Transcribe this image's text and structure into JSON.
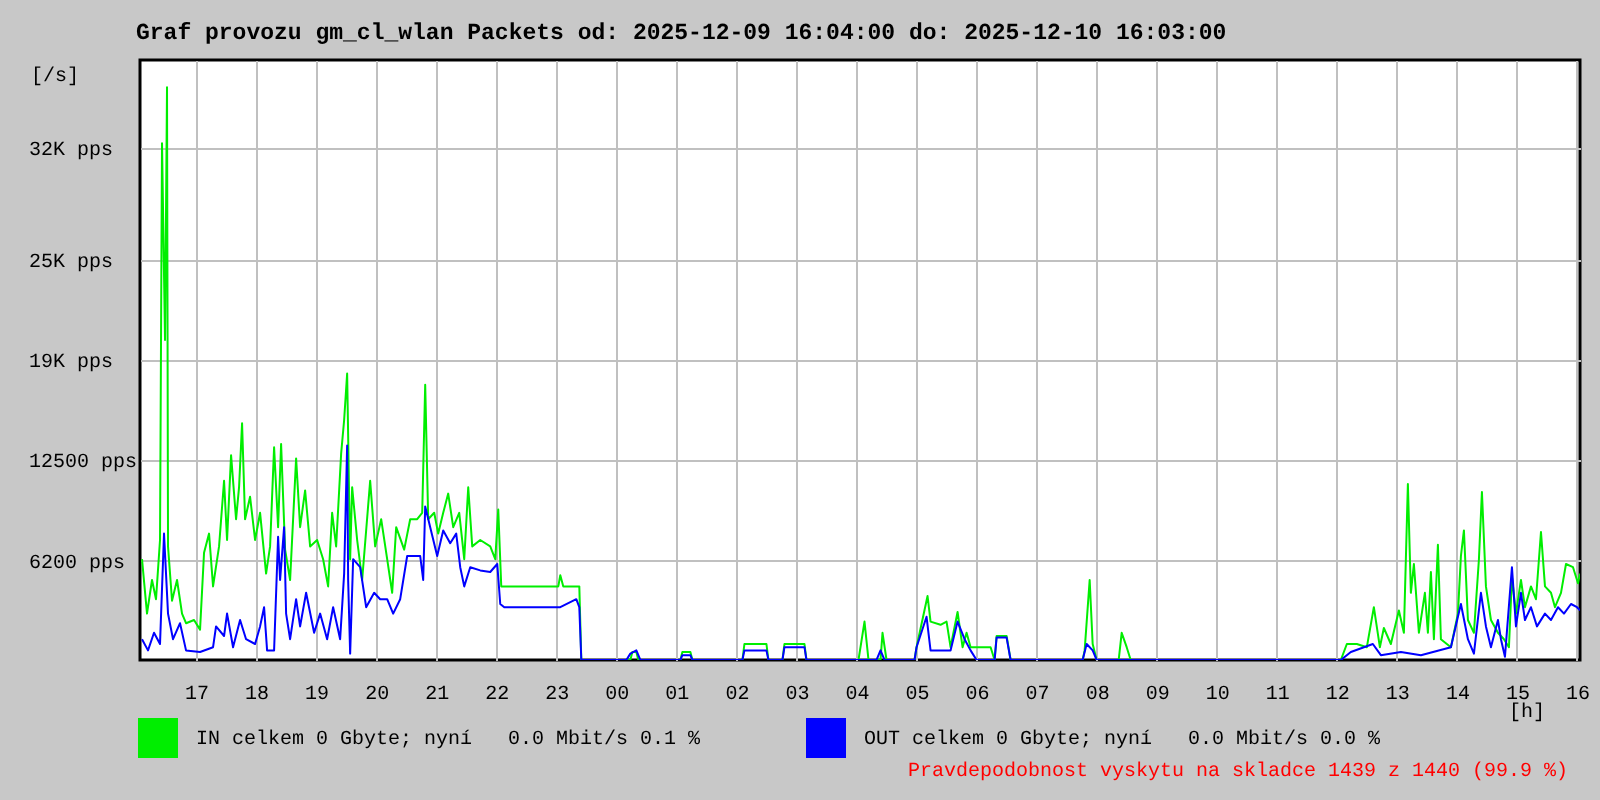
{
  "chart_data": {
    "type": "line",
    "title": "Graf provozu gm_cl_wlan Packets od: 2025-12-09 16:04:00 do: 2025-12-10 16:03:00",
    "ylabel": "[/s]",
    "xlabel": "[h]",
    "xlim": [
      "2025-12-09T16:04",
      "2025-12-10T16:03"
    ],
    "ylim": [
      0,
      37500
    ],
    "xticks": [
      {
        "value": "2025-12-09T17:00",
        "label": "17"
      },
      {
        "value": "2025-12-09T18:00",
        "label": "18"
      },
      {
        "value": "2025-12-09T19:00",
        "label": "19"
      },
      {
        "value": "2025-12-09T20:00",
        "label": "20"
      },
      {
        "value": "2025-12-09T21:00",
        "label": "21"
      },
      {
        "value": "2025-12-09T22:00",
        "label": "22"
      },
      {
        "value": "2025-12-09T23:00",
        "label": "23"
      },
      {
        "value": "2025-12-10T00:00",
        "label": "00"
      },
      {
        "value": "2025-12-10T01:00",
        "label": "01"
      },
      {
        "value": "2025-12-10T02:00",
        "label": "02"
      },
      {
        "value": "2025-12-10T03:00",
        "label": "03"
      },
      {
        "value": "2025-12-10T04:00",
        "label": "04"
      },
      {
        "value": "2025-12-10T05:00",
        "label": "05"
      },
      {
        "value": "2025-12-10T06:00",
        "label": "06"
      },
      {
        "value": "2025-12-10T07:00",
        "label": "07"
      },
      {
        "value": "2025-12-10T08:00",
        "label": "08"
      },
      {
        "value": "2025-12-10T09:00",
        "label": "09"
      },
      {
        "value": "2025-12-10T10:00",
        "label": "10"
      },
      {
        "value": "2025-12-10T11:00",
        "label": "11"
      },
      {
        "value": "2025-12-10T12:00",
        "label": "12"
      },
      {
        "value": "2025-12-10T13:00",
        "label": "13"
      },
      {
        "value": "2025-12-10T14:00",
        "label": "14"
      },
      {
        "value": "2025-12-10T15:00",
        "label": "15"
      },
      {
        "value": "2025-12-10T16:00",
        "label": "16"
      }
    ],
    "yticks": [
      {
        "value": 6200,
        "label": "6200 pps"
      },
      {
        "value": 12500,
        "label": "12500 pps"
      },
      {
        "value": 18750,
        "label": "19K pps"
      },
      {
        "value": 25000,
        "label": "25K pps"
      },
      {
        "value": 32000,
        "label": "32K pps"
      }
    ],
    "grid": true,
    "legend": "bottom left",
    "line_style": "solid",
    "annotations": [
      "Pravdepodobnost vyskytu na skladce 1439 z 1440 (99.9 %)"
    ],
    "series": [
      {
        "name": "IN celkem 0 Gbyte; nyní   0.0 Mbit/s 0.1 %",
        "color": "#00ee00",
        "x": [
          "2025-12-09T16:06",
          "2025-12-09T16:11",
          "2025-12-09T16:16",
          "2025-12-09T16:20",
          "2025-12-09T16:24",
          "2025-12-09T16:26",
          "2025-12-09T16:29",
          "2025-12-09T16:31",
          "2025-12-09T16:32",
          "2025-12-09T16:36",
          "2025-12-09T16:41",
          "2025-12-09T16:46",
          "2025-12-09T16:50",
          "2025-12-09T16:58",
          "2025-12-09T17:04",
          "2025-12-09T17:08",
          "2025-12-09T17:13",
          "2025-12-09T17:17",
          "2025-12-09T17:23",
          "2025-12-09T17:28",
          "2025-12-09T17:31",
          "2025-12-09T17:35",
          "2025-12-09T17:40",
          "2025-12-09T17:43",
          "2025-12-09T17:46",
          "2025-12-09T17:49",
          "2025-12-09T17:54",
          "2025-12-09T17:59",
          "2025-12-09T18:04",
          "2025-12-09T18:10",
          "2025-12-09T18:14",
          "2025-12-09T18:18",
          "2025-12-09T18:22",
          "2025-12-09T18:25",
          "2025-12-09T18:29",
          "2025-12-09T18:34",
          "2025-12-09T18:40",
          "2025-12-09T18:44",
          "2025-12-09T18:49",
          "2025-12-09T18:54",
          "2025-12-09T19:01",
          "2025-12-09T19:07",
          "2025-12-09T19:12",
          "2025-12-09T19:16",
          "2025-12-09T19:20",
          "2025-12-09T19:25",
          "2025-12-09T19:28",
          "2025-12-09T19:31",
          "2025-12-09T19:34",
          "2025-12-09T19:36",
          "2025-12-09T19:41",
          "2025-12-09T19:46",
          "2025-12-09T19:54",
          "2025-12-09T19:59",
          "2025-12-09T20:05",
          "2025-12-09T20:11",
          "2025-12-09T20:16",
          "2025-12-09T20:20",
          "2025-12-09T20:28",
          "2025-12-09T20:34",
          "2025-12-09T20:41",
          "2025-12-09T20:46",
          "2025-12-09T20:49",
          "2025-12-09T20:52",
          "2025-12-09T20:58",
          "2025-12-09T21:02",
          "2025-12-09T21:07",
          "2025-12-09T21:12",
          "2025-12-09T21:17",
          "2025-12-09T21:23",
          "2025-12-09T21:28",
          "2025-12-09T21:32",
          "2025-12-09T21:36",
          "2025-12-09T21:44",
          "2025-12-09T21:54",
          "2025-12-09T21:59",
          "2025-12-09T22:02",
          "2025-12-09T22:05",
          "2025-12-09T23:02",
          "2025-12-09T23:04",
          "2025-12-09T23:07",
          "2025-12-09T23:23",
          "2025-12-09T23:25",
          "2025-12-10T00:14",
          "2025-12-10T00:16",
          "2025-12-10T00:20",
          "2025-12-10T00:22",
          "2025-12-10T01:04",
          "2025-12-10T01:06",
          "2025-12-10T01:14",
          "2025-12-10T01:16",
          "2025-12-10T02:06",
          "2025-12-10T02:08",
          "2025-12-10T02:30",
          "2025-12-10T02:32",
          "2025-12-10T02:46",
          "2025-12-10T02:48",
          "2025-12-10T03:08",
          "2025-12-10T03:10",
          "2025-12-10T04:02",
          "2025-12-10T04:08",
          "2025-12-10T04:12",
          "2025-12-10T04:24",
          "2025-12-10T04:26",
          "2025-12-10T04:30",
          "2025-12-10T04:58",
          "2025-12-10T05:00",
          "2025-12-10T05:11",
          "2025-12-10T05:14",
          "2025-12-10T05:24",
          "2025-12-10T05:30",
          "2025-12-10T05:34",
          "2025-12-10T05:41",
          "2025-12-10T05:46",
          "2025-12-10T05:50",
          "2025-12-10T05:54",
          "2025-12-10T06:04",
          "2025-12-10T06:14",
          "2025-12-10T06:18",
          "2025-12-10T06:20",
          "2025-12-10T06:30",
          "2025-12-10T06:34",
          "2025-12-10T07:46",
          "2025-12-10T07:48",
          "2025-12-10T07:53",
          "2025-12-10T07:56",
          "2025-12-10T08:00",
          "2025-12-10T08:22",
          "2025-12-10T08:25",
          "2025-12-10T08:30",
          "2025-12-10T08:34",
          "2025-12-10T12:04",
          "2025-12-10T12:10",
          "2025-12-10T12:20",
          "2025-12-10T12:30",
          "2025-12-10T12:37",
          "2025-12-10T12:43",
          "2025-12-10T12:47",
          "2025-12-10T12:54",
          "2025-12-10T13:02",
          "2025-12-10T13:07",
          "2025-12-10T13:11",
          "2025-12-10T13:14",
          "2025-12-10T13:17",
          "2025-12-10T13:22",
          "2025-12-10T13:28",
          "2025-12-10T13:31",
          "2025-12-10T13:34",
          "2025-12-10T13:37",
          "2025-12-10T13:41",
          "2025-12-10T13:44",
          "2025-12-10T13:54",
          "2025-12-10T14:01",
          "2025-12-10T14:04",
          "2025-12-10T14:07",
          "2025-12-10T14:11",
          "2025-12-10T14:17",
          "2025-12-10T14:22",
          "2025-12-10T14:25",
          "2025-12-10T14:29",
          "2025-12-10T14:34",
          "2025-12-10T14:41",
          "2025-12-10T14:47",
          "2025-12-10T14:52",
          "2025-12-10T14:55",
          "2025-12-10T14:59",
          "2025-12-10T15:04",
          "2025-12-10T15:08",
          "2025-12-10T15:14",
          "2025-12-10T15:19",
          "2025-12-10T15:24",
          "2025-12-10T15:28",
          "2025-12-10T15:34",
          "2025-12-10T15:38",
          "2025-12-10T15:44",
          "2025-12-10T15:49",
          "2025-12-10T15:56",
          "2025-12-10T16:01",
          "2025-12-10T16:03"
        ],
        "values": [
          6300,
          2900,
          5000,
          3800,
          7500,
          32300,
          20000,
          35800,
          7100,
          3700,
          5000,
          2900,
          2300,
          2500,
          1900,
          6700,
          7900,
          4600,
          7100,
          11200,
          7500,
          12800,
          8800,
          10800,
          14800,
          8800,
          10200,
          7500,
          9200,
          5400,
          7100,
          13300,
          8300,
          13500,
          6900,
          5000,
          12600,
          8300,
          10600,
          7100,
          7500,
          6300,
          4600,
          9200,
          7100,
          12900,
          15000,
          17900,
          6300,
          10800,
          7500,
          5000,
          11200,
          7100,
          8800,
          6300,
          4200,
          8300,
          6900,
          8800,
          8800,
          9200,
          17200,
          8800,
          9200,
          7900,
          9200,
          10400,
          8300,
          9200,
          6300,
          10800,
          7100,
          7500,
          7100,
          6300,
          9400,
          4600,
          4600,
          5300,
          4600,
          4600,
          0,
          0,
          500,
          500,
          0,
          0,
          500,
          500,
          0,
          0,
          1000,
          1000,
          0,
          0,
          1000,
          1000,
          0,
          0,
          2400,
          0,
          0,
          1700,
          0,
          0,
          800,
          4000,
          2400,
          2200,
          2400,
          800,
          3000,
          800,
          1700,
          800,
          800,
          800,
          0,
          1500,
          1500,
          0,
          0,
          600,
          5000,
          1000,
          0,
          0,
          1700,
          800,
          0,
          0,
          1000,
          1000,
          800,
          3300,
          800,
          2000,
          1000,
          3100,
          1700,
          11000,
          4200,
          6000,
          1700,
          4200,
          1700,
          5500,
          1300,
          7200,
          1300,
          800,
          2900,
          6500,
          8100,
          2500,
          1700,
          6300,
          10500,
          4600,
          2500,
          1700,
          1300,
          800,
          5200,
          2900,
          5000,
          3300,
          4600,
          3800,
          8000,
          4600,
          4200,
          3300,
          4200,
          6000,
          5800,
          4800,
          5400
        ]
      },
      {
        "name": "OUT celkem 0 Gbyte; nyní   0.0 Mbit/s 0.0 %",
        "color": "#0000ff",
        "x": [
          "2025-12-09T16:06",
          "2025-12-09T16:12",
          "2025-12-09T16:18",
          "2025-12-09T16:24",
          "2025-12-09T16:28",
          "2025-12-09T16:32",
          "2025-12-09T16:37",
          "2025-12-09T16:44",
          "2025-12-09T16:50",
          "2025-12-09T17:04",
          "2025-12-09T17:17",
          "2025-12-09T17:20",
          "2025-12-09T17:28",
          "2025-12-09T17:31",
          "2025-12-09T17:37",
          "2025-12-09T17:44",
          "2025-12-09T17:50",
          "2025-12-09T17:59",
          "2025-12-09T18:04",
          "2025-12-09T18:08",
          "2025-12-09T18:11",
          "2025-12-09T18:18",
          "2025-12-09T18:22",
          "2025-12-09T18:24",
          "2025-12-09T18:28",
          "2025-12-09T18:30",
          "2025-12-09T18:34",
          "2025-12-09T18:40",
          "2025-12-09T18:44",
          "2025-12-09T18:50",
          "2025-12-09T18:58",
          "2025-12-09T19:04",
          "2025-12-09T19:11",
          "2025-12-09T19:17",
          "2025-12-09T19:24",
          "2025-12-09T19:28",
          "2025-12-09T19:31",
          "2025-12-09T19:32",
          "2025-12-09T19:34",
          "2025-12-09T19:37",
          "2025-12-09T19:44",
          "2025-12-09T19:50",
          "2025-12-09T19:58",
          "2025-12-09T20:04",
          "2025-12-09T20:11",
          "2025-12-09T20:17",
          "2025-12-09T20:24",
          "2025-12-09T20:31",
          "2025-12-09T20:37",
          "2025-12-09T20:44",
          "2025-12-09T20:47",
          "2025-12-09T20:49",
          "2025-12-09T20:54",
          "2025-12-09T21:01",
          "2025-12-09T21:07",
          "2025-12-09T21:14",
          "2025-12-09T21:20",
          "2025-12-09T21:24",
          "2025-12-09T21:28",
          "2025-12-09T21:34",
          "2025-12-09T21:44",
          "2025-12-09T21:54",
          "2025-12-09T22:01",
          "2025-12-09T22:04",
          "2025-12-09T22:08",
          "2025-12-09T23:04",
          "2025-12-09T23:20",
          "2025-12-09T23:23",
          "2025-12-09T23:25",
          "2025-12-10T00:10",
          "2025-12-10T00:14",
          "2025-12-10T00:20",
          "2025-12-10T00:24",
          "2025-12-10T01:04",
          "2025-12-10T01:06",
          "2025-12-10T01:14",
          "2025-12-10T01:16",
          "2025-12-10T02:06",
          "2025-12-10T02:08",
          "2025-12-10T02:30",
          "2025-12-10T02:32",
          "2025-12-10T02:46",
          "2025-12-10T02:48",
          "2025-12-10T03:08",
          "2025-12-10T03:10",
          "2025-12-10T04:20",
          "2025-12-10T04:24",
          "2025-12-10T04:28",
          "2025-12-10T04:58",
          "2025-12-10T05:00",
          "2025-12-10T05:10",
          "2025-12-10T05:14",
          "2025-12-10T05:34",
          "2025-12-10T05:41",
          "2025-12-10T05:48",
          "2025-12-10T05:54",
          "2025-12-10T06:00",
          "2025-12-10T06:18",
          "2025-12-10T06:20",
          "2025-12-10T06:30",
          "2025-12-10T06:34",
          "2025-12-10T07:46",
          "2025-12-10T07:50",
          "2025-12-10T07:56",
          "2025-12-10T08:00",
          "2025-12-10T12:04",
          "2025-12-10T12:14",
          "2025-12-10T12:36",
          "2025-12-10T12:44",
          "2025-12-10T13:04",
          "2025-12-10T13:24",
          "2025-12-10T13:54",
          "2025-12-10T14:01",
          "2025-12-10T14:04",
          "2025-12-10T14:11",
          "2025-12-10T14:17",
          "2025-12-10T14:24",
          "2025-12-10T14:29",
          "2025-12-10T14:34",
          "2025-12-10T14:41",
          "2025-12-10T14:44",
          "2025-12-10T14:48",
          "2025-12-10T14:55",
          "2025-12-10T14:59",
          "2025-12-10T15:04",
          "2025-12-10T15:08",
          "2025-12-10T15:14",
          "2025-12-10T15:20",
          "2025-12-10T15:28",
          "2025-12-10T15:34",
          "2025-12-10T15:41",
          "2025-12-10T15:47",
          "2025-12-10T15:54",
          "2025-12-10T16:00",
          "2025-12-10T16:03"
        ],
        "values": [
          1300,
          600,
          1700,
          1000,
          7900,
          2900,
          1300,
          2300,
          600,
          500,
          800,
          2100,
          1500,
          2900,
          800,
          2500,
          1300,
          1000,
          2100,
          3300,
          600,
          600,
          7700,
          5000,
          8300,
          2900,
          1300,
          3800,
          2100,
          4200,
          1700,
          2900,
          1300,
          3300,
          1300,
          5400,
          13400,
          5000,
          400,
          6300,
          5800,
          3300,
          4200,
          3800,
          3800,
          2900,
          3800,
          6500,
          6500,
          6500,
          5000,
          9600,
          8300,
          6500,
          8100,
          7300,
          7900,
          5800,
          4600,
          5800,
          5600,
          5500,
          6000,
          3500,
          3300,
          3300,
          3800,
          3300,
          0,
          0,
          400,
          600,
          0,
          0,
          300,
          300,
          0,
          0,
          600,
          600,
          0,
          0,
          800,
          800,
          0,
          0,
          600,
          0,
          0,
          800,
          2700,
          600,
          600,
          2400,
          1300,
          600,
          0,
          0,
          1400,
          1400,
          0,
          0,
          1000,
          600,
          0,
          0,
          500,
          1000,
          300,
          500,
          300,
          800,
          2700,
          3500,
          1300,
          400,
          4200,
          2100,
          800,
          2500,
          1300,
          200,
          5800,
          2100,
          4200,
          2500,
          3300,
          2100,
          2900,
          2500,
          3300,
          2900,
          3500,
          3300,
          3100
        ]
      }
    ]
  }
}
